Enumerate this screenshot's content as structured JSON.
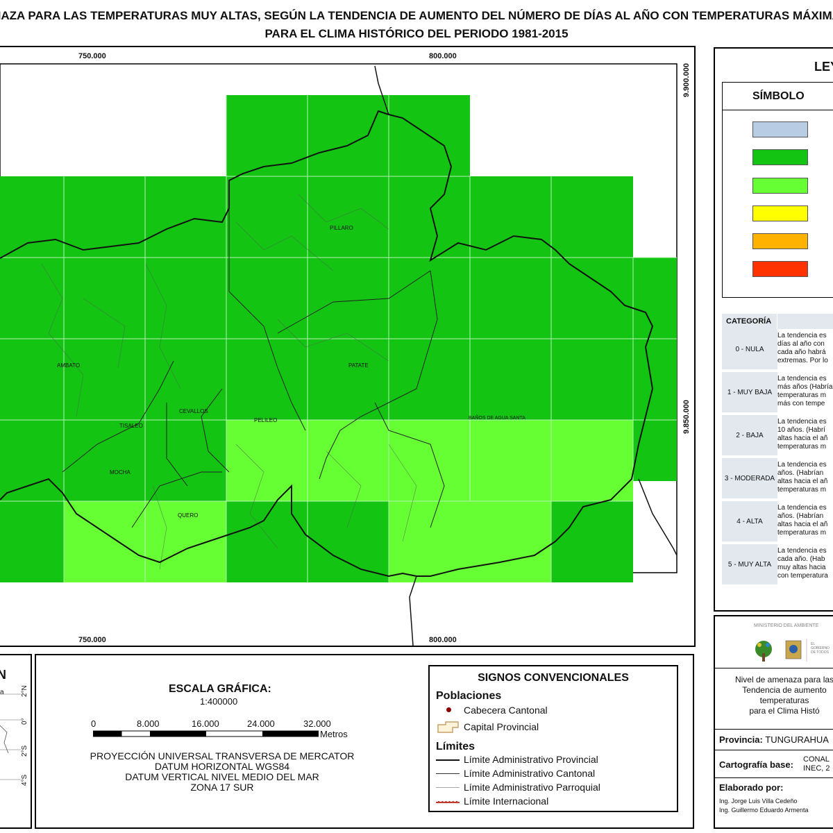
{
  "title": {
    "line1": "NAZA PARA LAS TEMPERATURAS MUY ALTAS, SEGÚN LA TENDENCIA DE AUMENTO DEL NÚMERO DE DÍAS AL AÑO CON TEMPERATURAS MÁXIMA",
    "line2": "PARA EL CLIMA HISTÓRICO DEL PERIODO 1981-2015"
  },
  "map": {
    "x_ticks": [
      "750.000",
      "800.000"
    ],
    "y_ticks": [
      "9.900.000",
      "9.850.000"
    ],
    "places": [
      "PILLARO",
      "AMBATO",
      "PATATE",
      "BAÑOS DE AGUA SANTA",
      "CEVALLOS",
      "TISALEO",
      "PELILEO",
      "MOCHA",
      "QUERO"
    ]
  },
  "legend": {
    "title": "LEY",
    "symbol_header": "SÍMBOLO",
    "category_header": "CATEGORÍA",
    "swatches": [
      "#b8cce4",
      "#13c413",
      "#66ff33",
      "#ffff00",
      "#ffb300",
      "#ff3300"
    ],
    "categories": [
      {
        "name": "0 - NULA",
        "desc": [
          "La tendencia es",
          "días al año con",
          "cada año habrá",
          "extremas. Por lo"
        ]
      },
      {
        "name": "1 - MUY BAJA",
        "desc": [
          "La tendencia es",
          "más años (Habría",
          "temperaturas m",
          "más con tempe"
        ]
      },
      {
        "name": "2 - BAJA",
        "desc": [
          "La tendencia es",
          "10 años. (Habrí",
          "altas hacia el añ",
          "temperaturas m"
        ]
      },
      {
        "name": "3 - MODERADA",
        "desc": [
          "La tendencia es",
          "años. (Habrían",
          "altas hacia el añ",
          "temperaturas m"
        ]
      },
      {
        "name": "4 - ALTA",
        "desc": [
          "La tendencia es",
          "años. (Habrían",
          "altas hacia el añ",
          "temperaturas m"
        ]
      },
      {
        "name": "5 - MUY ALTA",
        "desc": [
          "La tendencia es",
          "cada año. (Hab",
          "muy altas hacia",
          "con temperatura"
        ]
      }
    ]
  },
  "inset": {
    "label_n": "N",
    "label_a": "a",
    "lat_ticks": [
      "2°N",
      "0°",
      "2°S",
      "4°S"
    ]
  },
  "scale": {
    "title": "ESCALA GRÁFICA:",
    "ratio": "1:400000",
    "ticks": [
      "0",
      "8.000",
      "16.000",
      "24.000",
      "32.000"
    ],
    "unit": "Metros",
    "projection": [
      "PROYECCIÓN UNIVERSAL TRANSVERSA DE MERCATOR",
      "DATUM HORIZONTAL WGS84",
      "DATUM VERTICAL NIVEL MEDIO DEL MAR",
      "ZONA 17 SUR"
    ]
  },
  "signs": {
    "title": "SIGNOS CONVENCIONALES",
    "poblaciones": "Poblaciones",
    "cabecera": "Cabecera Cantonal",
    "capital": "Capital Provincial",
    "limites": "Límites",
    "prov": "Límite Administrativo Provincial",
    "cant": "Límite Administrativo Cantonal",
    "parr": "Límite Administrativo Parroquial",
    "intl": "Límite Internacional"
  },
  "info": {
    "ministry": "MINISTERIO DEL AMBIENTE",
    "gov_text": "EL GOBIERNO DE TODOS",
    "description": [
      "Nivel de amenaza para las",
      "Tendencia de aumento",
      "temperaturas",
      "para el Clima Histó"
    ],
    "provincia_label": "Provincia:",
    "provincia_value": "TUNGURAHUA",
    "carto_label": "Cartografía base:",
    "carto_value": [
      "CONAL",
      "INEC, 2"
    ],
    "elaborado_label": "Elaborado por:",
    "authors": [
      "Ing. Jorge Luis Villa Cedeño",
      "Ing. Guillermo Eduardo Armenta"
    ]
  }
}
